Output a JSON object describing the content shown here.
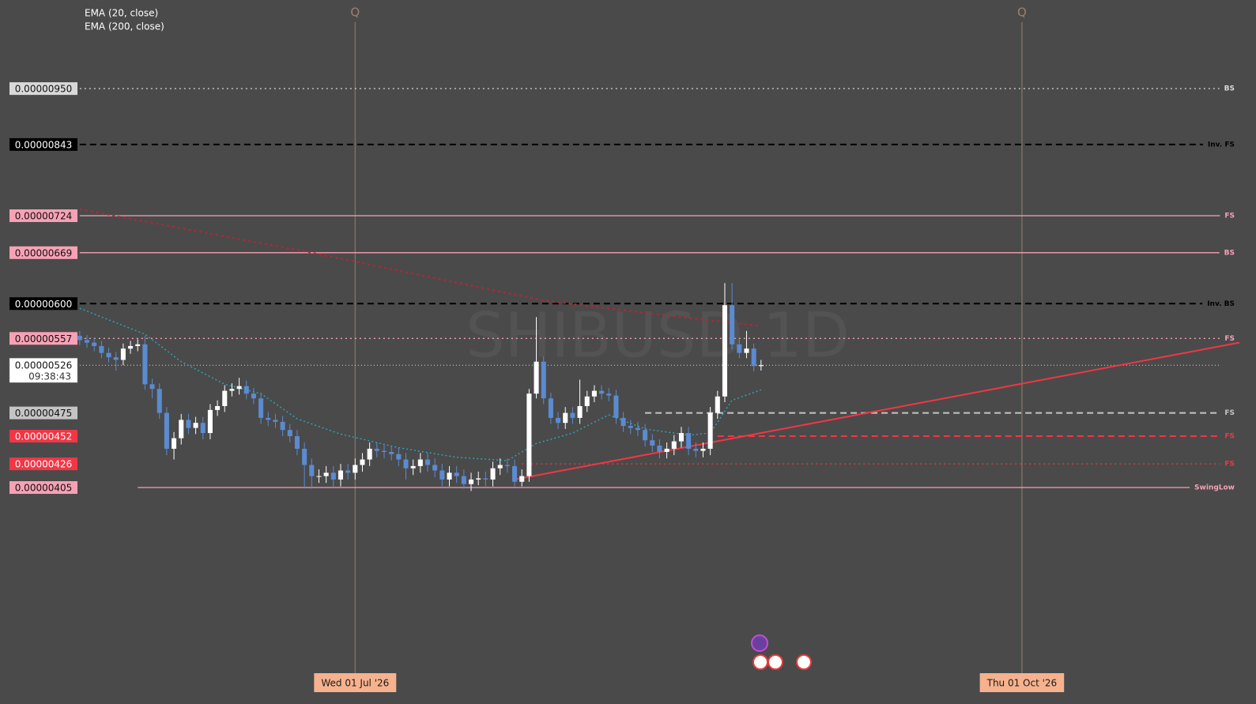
{
  "chart_data": {
    "type": "candlestick",
    "watermark": "SHIBUSD 1D",
    "quarter_marker": "Q",
    "log_scale": true,
    "ylim": [
      2.55e-06,
      1.148e-05
    ],
    "xlim": [
      -11,
      160
    ],
    "xticks": [
      {
        "value": 38,
        "label": "Wed 01 Jul '26"
      },
      {
        "value": 130,
        "label": "Thu 01 Oct '26"
      }
    ],
    "up_color": "#ffffff",
    "down_color": "#5b8bd0",
    "open": [
      5.6e-06,
      5.55e-06,
      5.52e-06,
      5.48e-06,
      5.4e-06,
      5.35e-06,
      5.32e-06,
      5.45e-06,
      5.48e-06,
      5.5e-06,
      5.05e-06,
      5e-06,
      4.75e-06,
      4.4e-06,
      4.5e-06,
      4.68e-06,
      4.6e-06,
      4.65e-06,
      4.55e-06,
      4.78e-06,
      4.82e-06,
      4.98e-06,
      5e-06,
      5.03e-06,
      4.95e-06,
      4.9e-06,
      4.7e-06,
      4.68e-06,
      4.66e-06,
      4.58e-06,
      4.52e-06,
      4.4e-06,
      4.25e-06,
      4.15e-06,
      4.15e-06,
      4.18e-06,
      4.12e-06,
      4.2e-06,
      4.18e-06,
      4.25e-06,
      4.3e-06,
      4.4e-06,
      4.38e-06,
      4.37e-06,
      4.35e-06,
      4.3e-06,
      4.22e-06,
      4.24e-06,
      4.3e-06,
      4.25e-06,
      4.2e-06,
      4.12e-06,
      4.18e-06,
      4.15e-06,
      4.08e-06,
      4.12e-06,
      4.13e-06,
      4.12e-06,
      4.22e-06,
      4.25e-06,
      4.24e-06,
      4.1e-06,
      4.15e-06,
      4.95e-06,
      5.3e-06,
      4.9e-06,
      4.7e-06,
      4.65e-06,
      4.75e-06,
      4.7e-06,
      4.82e-06,
      4.92e-06,
      4.98e-06,
      4.95e-06,
      4.93e-06,
      4.7e-06,
      4.62e-06,
      4.6e-06,
      4.58e-06,
      4.48e-06,
      4.43e-06,
      4.37e-06,
      4.4e-06,
      4.47e-06,
      4.55e-06,
      4.4e-06,
      4.38e-06,
      4.4e-06,
      4.75e-06,
      4.92e-06,
      5.98e-06,
      5.5e-06,
      5.4e-06,
      5.45e-06,
      5.25e-06
    ],
    "high": [
      5.66e-06,
      5.61e-06,
      5.58e-06,
      5.54e-06,
      5.46e-06,
      5.41e-06,
      5.51e-06,
      5.54e-06,
      5.56e-06,
      5.6e-06,
      5.11e-06,
      5.06e-06,
      4.81e-06,
      4.56e-06,
      4.74e-06,
      4.74e-06,
      4.71e-06,
      4.71e-06,
      4.84e-06,
      4.88e-06,
      5.04e-06,
      5.06e-06,
      5.12e-06,
      5.09e-06,
      5.01e-06,
      4.96e-06,
      4.76e-06,
      4.74e-06,
      4.72e-06,
      4.64e-06,
      4.58e-06,
      4.46e-06,
      4.31e-06,
      4.21e-06,
      4.24e-06,
      4.24e-06,
      4.26e-06,
      4.26e-06,
      4.31e-06,
      4.36e-06,
      4.46e-06,
      4.46e-06,
      4.44e-06,
      4.43e-06,
      4.41e-06,
      4.36e-06,
      4.3e-06,
      4.36e-06,
      4.36e-06,
      4.31e-06,
      4.26e-06,
      4.24e-06,
      4.24e-06,
      4.21e-06,
      4.18e-06,
      4.19e-06,
      4.19e-06,
      4.28e-06,
      4.31e-06,
      4.31e-06,
      4.3e-06,
      4.21e-06,
      5e-06,
      5.83e-06,
      5.36e-06,
      4.96e-06,
      4.76e-06,
      4.81e-06,
      4.81e-06,
      5.1e-06,
      4.98e-06,
      5.04e-06,
      5.04e-06,
      5.01e-06,
      4.99e-06,
      4.76e-06,
      4.68e-06,
      4.66e-06,
      4.64e-06,
      4.54e-06,
      4.49e-06,
      4.46e-06,
      4.53e-06,
      4.61e-06,
      4.61e-06,
      4.46e-06,
      4.46e-06,
      4.81e-06,
      4.98e-06,
      6.27e-06,
      6.27e-06,
      5.56e-06,
      5.66e-06,
      5.51e-06,
      5.32e-06
    ],
    "low": [
      5.49e-06,
      5.46e-06,
      5.42e-06,
      5.34e-06,
      5.29e-06,
      5.2e-06,
      5.26e-06,
      5.39e-06,
      5.42e-06,
      4.99e-06,
      4.9e-06,
      4.69e-06,
      4.34e-06,
      4.3e-06,
      4.44e-06,
      4.54e-06,
      4.54e-06,
      4.49e-06,
      4.49e-06,
      4.72e-06,
      4.76e-06,
      4.92e-06,
      4.94e-06,
      4.89e-06,
      4.84e-06,
      4.64e-06,
      4.62e-06,
      4.6e-06,
      4.52e-06,
      4.46e-06,
      4.34e-06,
      4.05e-06,
      4.04e-06,
      4.09e-06,
      4.09e-06,
      4.05e-06,
      4.06e-06,
      4.12e-06,
      4.12e-06,
      4.19e-06,
      4.24e-06,
      4.32e-06,
      4.31e-06,
      4.29e-06,
      4.24e-06,
      4.12e-06,
      4.16e-06,
      4.18e-06,
      4.19e-06,
      4.14e-06,
      4.06e-06,
      4.06e-06,
      4.09e-06,
      4.04e-06,
      4.02e-06,
      4.07e-06,
      4.06e-06,
      4.06e-06,
      4.16e-06,
      4.18e-06,
      4.06e-06,
      4.06e-06,
      4.1e-06,
      4.9e-06,
      4.84e-06,
      4.64e-06,
      4.59e-06,
      4.59e-06,
      4.64e-06,
      4.64e-06,
      4.76e-06,
      4.86e-06,
      4.89e-06,
      4.87e-06,
      4.64e-06,
      4.56e-06,
      4.54e-06,
      4.52e-06,
      4.42e-06,
      4.37e-06,
      4.31e-06,
      4.31e-06,
      4.34e-06,
      4.41e-06,
      4.34e-06,
      4.32e-06,
      4.32e-06,
      4.34e-06,
      4.69e-06,
      4.86e-06,
      5.44e-06,
      5.34e-06,
      5.34e-06,
      5.19e-06,
      5.2e-06
    ],
    "close": [
      5.55e-06,
      5.52e-06,
      5.48e-06,
      5.4e-06,
      5.35e-06,
      5.32e-06,
      5.45e-06,
      5.48e-06,
      5.5e-06,
      5.05e-06,
      5e-06,
      4.75e-06,
      4.4e-06,
      4.5e-06,
      4.68e-06,
      4.6e-06,
      4.65e-06,
      4.55e-06,
      4.78e-06,
      4.82e-06,
      4.98e-06,
      5e-06,
      5.03e-06,
      4.95e-06,
      4.9e-06,
      4.7e-06,
      4.68e-06,
      4.66e-06,
      4.58e-06,
      4.52e-06,
      4.4e-06,
      4.25e-06,
      4.15e-06,
      4.15e-06,
      4.18e-06,
      4.12e-06,
      4.2e-06,
      4.18e-06,
      4.25e-06,
      4.3e-06,
      4.4e-06,
      4.38e-06,
      4.37e-06,
      4.35e-06,
      4.3e-06,
      4.22e-06,
      4.24e-06,
      4.3e-06,
      4.25e-06,
      4.2e-06,
      4.12e-06,
      4.18e-06,
      4.15e-06,
      4.08e-06,
      4.12e-06,
      4.13e-06,
      4.12e-06,
      4.22e-06,
      4.25e-06,
      4.24e-06,
      4.1e-06,
      4.15e-06,
      4.95e-06,
      5.3e-06,
      4.9e-06,
      4.7e-06,
      4.65e-06,
      4.75e-06,
      4.7e-06,
      4.82e-06,
      4.92e-06,
      4.98e-06,
      4.95e-06,
      4.93e-06,
      4.7e-06,
      4.62e-06,
      4.6e-06,
      4.58e-06,
      4.48e-06,
      4.43e-06,
      4.37e-06,
      4.4e-06,
      4.47e-06,
      4.55e-06,
      4.4e-06,
      4.38e-06,
      4.4e-06,
      4.75e-06,
      4.92e-06,
      5.98e-06,
      5.5e-06,
      5.4e-06,
      5.45e-06,
      5.25e-06,
      5.26e-06
    ],
    "indicators": [
      {
        "name": "EMA (20, close)",
        "color": "#2aa7bd",
        "x": [
          0,
          9,
          14,
          20,
          25,
          30,
          36,
          44,
          52,
          59,
          63,
          68,
          73,
          78,
          84,
          87,
          90,
          94
        ],
        "values": [
          5.94e-06,
          5.62e-06,
          5.3e-06,
          5.05e-06,
          4.95e-06,
          4.69e-06,
          4.54e-06,
          4.41e-06,
          4.32e-06,
          4.29e-06,
          4.45e-06,
          4.55e-06,
          4.73e-06,
          4.59e-06,
          4.53e-06,
          4.55e-06,
          4.88e-06,
          4.99e-06
        ]
      },
      {
        "name": "EMA (200, close)",
        "color": "#b0283a",
        "x": [
          0,
          32,
          64,
          82,
          94
        ],
        "values": [
          7.34e-06,
          6.69e-06,
          6.04e-06,
          5.84e-06,
          5.72e-06
        ]
      }
    ],
    "trendline": {
      "color": "#f23645",
      "x": [
        60,
        160
      ],
      "values": [
        4.12e-06,
        5.52e-06
      ]
    },
    "levels": [
      {
        "value": 9.5e-06,
        "label": "0.00000950",
        "tag": "BS",
        "color": "#d9d9d9",
        "dash": "dotted",
        "x_start": 0
      },
      {
        "value": 8.43e-06,
        "label": "0.00000843",
        "tag": "Inv. FS",
        "color": "#000000",
        "dash": "dashed",
        "x_start": 0
      },
      {
        "value": 7.24e-06,
        "label": "0.00000724",
        "tag": "FS",
        "color": "#f7a1b6",
        "dash": "solid",
        "x_start": 0
      },
      {
        "value": 6.69e-06,
        "label": "0.00000669",
        "tag": "BS",
        "color": "#f7a1b6",
        "dash": "solid",
        "x_start": 0
      },
      {
        "value": 6e-06,
        "label": "0.00000600",
        "tag": "Inv. BS",
        "color": "#000000",
        "dash": "dashed",
        "x_start": 0
      },
      {
        "value": 5.57e-06,
        "label": "0.00000557",
        "tag": "FS",
        "color": "#f7a1b6",
        "dash": "dotted",
        "x_start": 0
      },
      {
        "value": 4.75e-06,
        "label": "0.00000475",
        "tag": "FS",
        "color": "#c4c4c4",
        "dash": "dashed",
        "x_start": 78
      },
      {
        "value": 4.52e-06,
        "label": "0.00000452",
        "tag": "FS",
        "color": "#f23645",
        "dash": "dashed",
        "x_start": 88
      },
      {
        "value": 4.26e-06,
        "label": "0.00000426",
        "tag": "FS",
        "color": "#f23645",
        "dash": "dotted",
        "x_start": 61
      },
      {
        "value": 4.05e-06,
        "label": "0.00000405",
        "tag": "SwingLow",
        "color": "#f7a1b6",
        "dash": "solid",
        "x_start": 8
      }
    ],
    "current_price": {
      "value": 5.26e-06,
      "label": "0.00000526",
      "countdown": "09:38:43"
    }
  }
}
